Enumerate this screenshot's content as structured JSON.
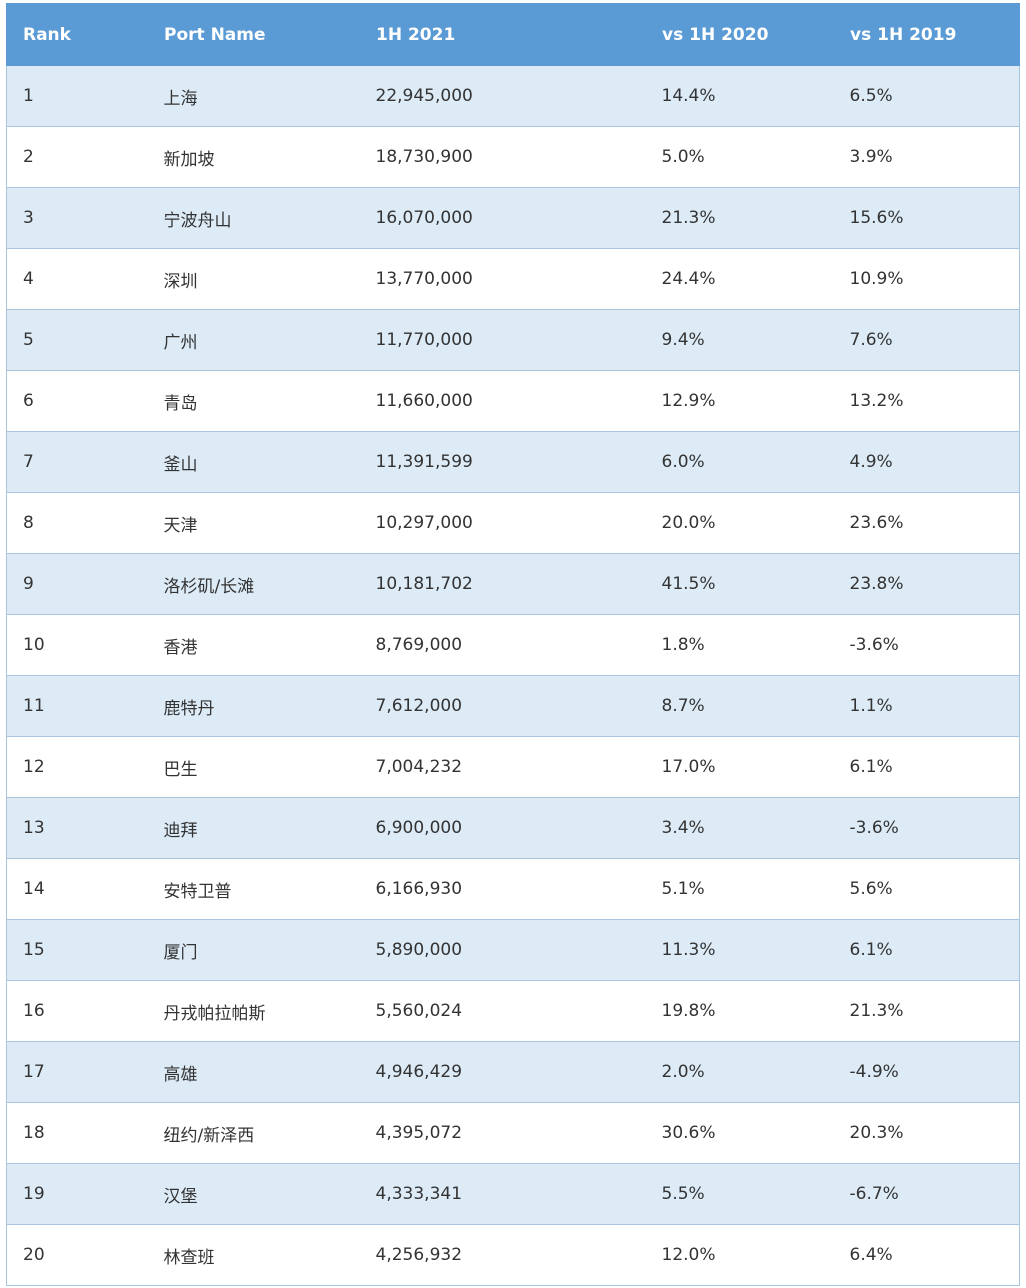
{
  "table": {
    "headers": [
      "Rank",
      "Port Name",
      "1H 2021",
      "vs 1H 2020",
      "vs 1H 2019"
    ],
    "rows": [
      [
        "1",
        "上海",
        "22,945,000",
        "14.4%",
        "6.5%"
      ],
      [
        "2",
        "新加坡",
        "18,730,900",
        "5.0%",
        "3.9%"
      ],
      [
        "3",
        "宁波舟山",
        "16,070,000",
        "21.3%",
        "15.6%"
      ],
      [
        "4",
        "深圳",
        "13,770,000",
        "24.4%",
        "10.9%"
      ],
      [
        "5",
        "广州",
        "11,770,000",
        "9.4%",
        "7.6%"
      ],
      [
        "6",
        "青岛",
        "11,660,000",
        "12.9%",
        "13.2%"
      ],
      [
        "7",
        "釜山",
        "11,391,599",
        "6.0%",
        "4.9%"
      ],
      [
        "8",
        "天津",
        "10,297,000",
        "20.0%",
        "23.6%"
      ],
      [
        "9",
        "洛杉矶/长滩",
        "10,181,702",
        "41.5%",
        "23.8%"
      ],
      [
        "10",
        "香港",
        "8,769,000",
        "1.8%",
        "-3.6%"
      ],
      [
        "11",
        "鹿特丹",
        "7,612,000",
        "8.7%",
        "1.1%"
      ],
      [
        "12",
        "巴生",
        "7,004,232",
        "17.0%",
        "6.1%"
      ],
      [
        "13",
        "迪拜",
        "6,900,000",
        "3.4%",
        "-3.6%"
      ],
      [
        "14",
        "安特卫普",
        "6,166,930",
        "5.1%",
        "5.6%"
      ],
      [
        "15",
        "厦门",
        "5,890,000",
        "11.3%",
        "6.1%"
      ],
      [
        "16",
        "丹戎帕拉帕斯",
        "5,560,024",
        "19.8%",
        "21.3%"
      ],
      [
        "17",
        "高雄",
        "4,946,429",
        "2.0%",
        "-4.9%"
      ],
      [
        "18",
        "纽约/新泽西",
        "4,395,072",
        "30.6%",
        "20.3%"
      ],
      [
        "19",
        "汉堡",
        "4,333,341",
        "5.5%",
        "-6.7%"
      ],
      [
        "20",
        "林查班",
        "4,256,932",
        "12.0%",
        "6.4%"
      ]
    ]
  },
  "colors": {
    "header_bg": "#5b9bd5",
    "stripe_bg": "#ddebf7",
    "border": "#a9c4de"
  }
}
